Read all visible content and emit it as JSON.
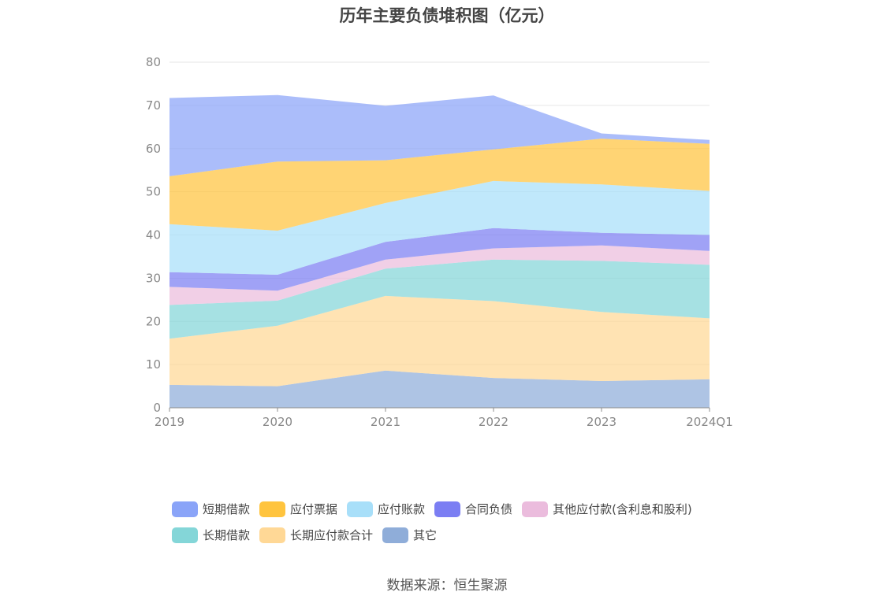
{
  "chart_data": {
    "type": "area",
    "stacked": true,
    "title": "历年主要负债堆积图（亿元）",
    "source": "数据来源：恒生聚源",
    "x": [
      "2019",
      "2020",
      "2021",
      "2022",
      "2023",
      "2024Q1"
    ],
    "ylim": [
      0,
      80
    ],
    "yticks": [
      "0",
      "10",
      "20",
      "30",
      "40",
      "50",
      "60",
      "70",
      "80"
    ],
    "grid": true,
    "legend_position": "bottom",
    "series": [
      {
        "name": "其它",
        "color": "#8fadd9",
        "values": [
          5.3,
          5.0,
          8.6,
          6.9,
          6.2,
          6.6
        ]
      },
      {
        "name": "长期应付款合计",
        "color": "#ffd896",
        "values": [
          10.7,
          14.0,
          17.3,
          17.8,
          16.0,
          14.1
        ]
      },
      {
        "name": "长期借款",
        "color": "#84d6d8",
        "values": [
          7.8,
          5.8,
          6.3,
          9.6,
          11.8,
          12.4
        ]
      },
      {
        "name": "其他应付款(含利息和股利)",
        "color": "#ebbcdd",
        "values": [
          4.2,
          2.3,
          2.1,
          2.6,
          3.6,
          3.2
        ]
      },
      {
        "name": "合同负债",
        "color": "#7b7ef3",
        "values": [
          3.4,
          3.7,
          4.1,
          4.7,
          2.9,
          3.7
        ]
      },
      {
        "name": "应付账款",
        "color": "#a8dff9",
        "values": [
          11.1,
          10.2,
          9.0,
          10.9,
          11.2,
          10.2
        ]
      },
      {
        "name": "应付票据",
        "color": "#ffc43e",
        "values": [
          11.1,
          16.0,
          9.9,
          7.3,
          10.6,
          10.9
        ]
      },
      {
        "name": "短期借款",
        "color": "#8aa4f8",
        "values": [
          18.1,
          15.4,
          12.6,
          12.5,
          1.2,
          0.9
        ]
      }
    ]
  },
  "legend": {
    "rows": [
      [
        {
          "name": "短期借款",
          "color": "#8aa4f8"
        },
        {
          "name": "应付票据",
          "color": "#ffc43e"
        },
        {
          "name": "应付账款",
          "color": "#a8dff9"
        },
        {
          "name": "合同负债",
          "color": "#7b7ef3"
        },
        {
          "name": "其他应付款(含利息和股利)",
          "color": "#ebbcdd"
        }
      ],
      [
        {
          "name": "长期借款",
          "color": "#84d6d8"
        },
        {
          "name": "长期应付款合计",
          "color": "#ffd896"
        },
        {
          "name": "其它",
          "color": "#8fadd9"
        }
      ]
    ]
  }
}
